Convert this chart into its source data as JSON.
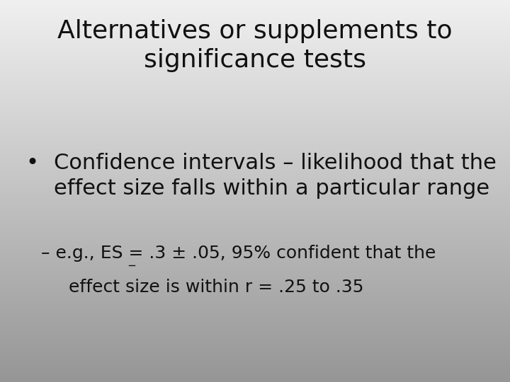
{
  "title_line1": "Alternatives or supplements to",
  "title_line2": "significance tests",
  "bullet1_line1": "Confidence intervals – likelihood that the",
  "bullet1_line2": "effect size falls within a particular range",
  "sub_line1": "– e.g., ES = .3 ± .05, 95% confident that the",
  "sub_line2": "effect size is within r = .25 to .35",
  "background_top": "#f0f0f0",
  "background_bottom": "#969696",
  "title_fontsize": 26,
  "bullet_fontsize": 22,
  "sub_fontsize": 18,
  "text_color": "#111111"
}
